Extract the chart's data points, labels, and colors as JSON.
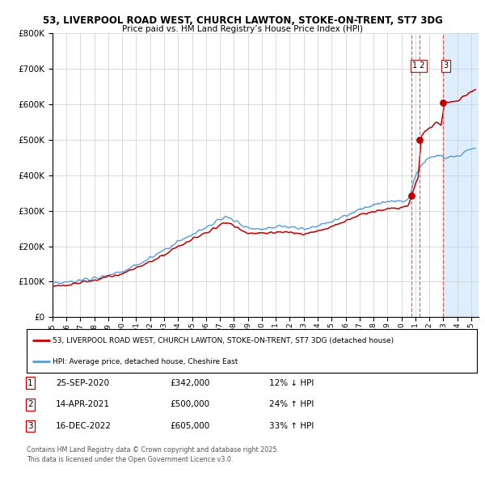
{
  "title_line1": "53, LIVERPOOL ROAD WEST, CHURCH LAWTON, STOKE-ON-TRENT, ST7 3DG",
  "title_line2": "Price paid vs. HM Land Registry’s House Price Index (HPI)",
  "legend_line1": "53, LIVERPOOL ROAD WEST, CHURCH LAWTON, STOKE-ON-TRENT, ST7 3DG (detached house)",
  "legend_line2": "HPI: Average price, detached house, Cheshire East",
  "footer": "Contains HM Land Registry data © Crown copyright and database right 2025.\nThis data is licensed under the Open Government Licence v3.0.",
  "transactions": [
    {
      "num": 1,
      "date": "25-SEP-2020",
      "price": "£342,000",
      "pct": "12% ↓ HPI",
      "year": 2020.73,
      "value": 342000
    },
    {
      "num": 2,
      "date": "14-APR-2021",
      "price": "£500,000",
      "pct": "24% ↑ HPI",
      "year": 2021.28,
      "value": 500000
    },
    {
      "num": 3,
      "date": "16-DEC-2022",
      "price": "£605,000",
      "pct": "33% ↑ HPI",
      "year": 2022.95,
      "value": 605000
    }
  ],
  "hpi_color": "#5b9bd5",
  "price_color": "#c00000",
  "vline_color": "#e06060",
  "shade_color": "#ddeeff",
  "background_color": "#ffffff",
  "grid_color": "#cccccc",
  "ylim": [
    0,
    800000
  ],
  "yticks": [
    0,
    100000,
    200000,
    300000,
    400000,
    500000,
    600000,
    700000,
    800000
  ],
  "xlim_start": 1995,
  "xlim_end": 2025.5
}
